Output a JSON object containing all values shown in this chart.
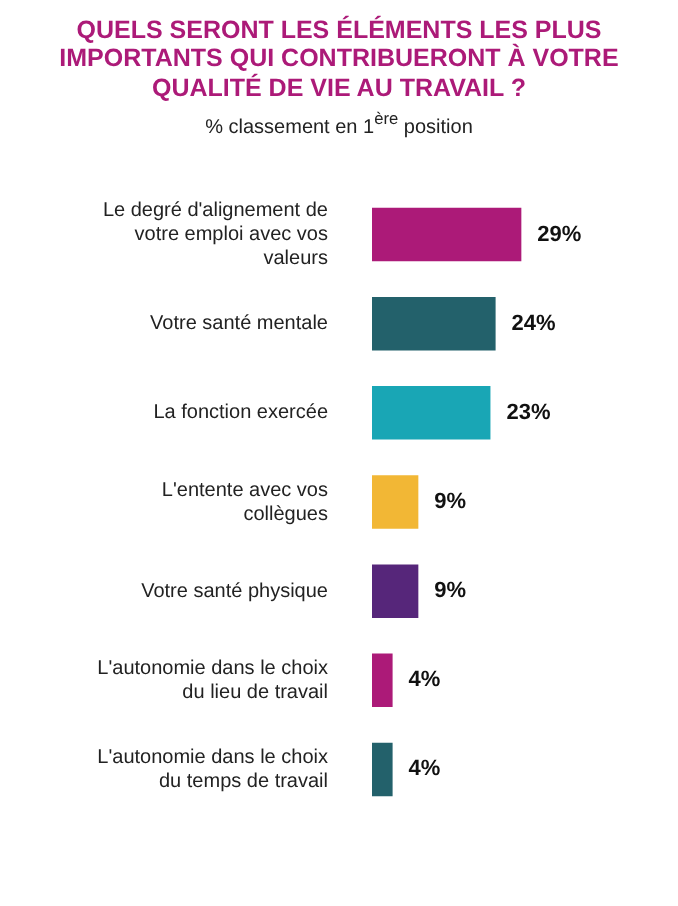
{
  "chart_data": {
    "type": "bar",
    "orientation": "horizontal",
    "title": "QUELS SERONT LES ÉLÉMENTS LES PLUS IMPORTANTS QUI CONTRIBUERONT À VOTRE QUALITÉ DE VIE AU TRAVAIL ?",
    "subtitle": "% classement en 1$^{ère}$ position",
    "categories": [
      "Le degré d'alignement de votre emploi avec vos valeurs",
      "Votre santé mentale",
      "La fonction exercée",
      "L'entente avec vos collègues",
      "Votre santé physique",
      "L'autonomie dans le choix du lieu de travail",
      "L'autonomie dans le choix du temps de travail"
    ],
    "values": [
      29,
      24,
      23,
      9,
      9,
      4,
      4
    ],
    "colors": [
      "#ac1a78",
      "#23616b",
      "#19a6b5",
      "#f2b735",
      "#56267a",
      "#ac1a78",
      "#23616b"
    ],
    "value_labels": [
      "29%",
      "24%",
      "23%",
      "9%",
      "9%",
      "4%",
      "4%"
    ],
    "tick_labels": "y"
  }
}
